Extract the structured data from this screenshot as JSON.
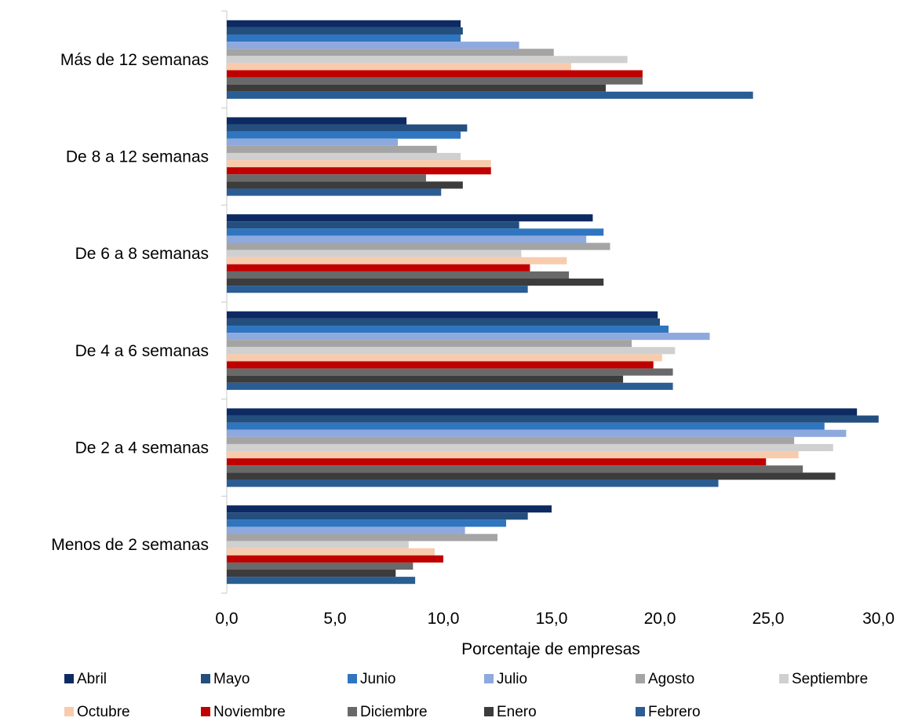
{
  "chart_data": {
    "type": "bar",
    "orientation": "horizontal",
    "categories": [
      "Más de 12 semanas",
      "De 8 a 12 semanas",
      "De 6 a 8 semanas",
      "De 4 a 6 semanas",
      "De 2 a 4 semanas",
      "Menos de 2 semanas"
    ],
    "series": [
      {
        "name": "Abril",
        "color": "#0e2a63",
        "values": [
          10.8,
          8.3,
          16.9,
          19.9,
          29.1,
          15.0
        ]
      },
      {
        "name": "Mayo",
        "color": "#234e7e",
        "values": [
          10.9,
          11.1,
          13.5,
          20.0,
          30.1,
          13.9
        ]
      },
      {
        "name": "Junio",
        "color": "#2f75c0",
        "values": [
          10.8,
          10.8,
          17.4,
          20.4,
          27.6,
          12.9
        ]
      },
      {
        "name": "Julio",
        "color": "#8ea9dd",
        "values": [
          13.5,
          7.9,
          16.6,
          22.3,
          28.6,
          11.0
        ]
      },
      {
        "name": "Agosto",
        "color": "#a4a4a4",
        "values": [
          15.1,
          9.7,
          17.7,
          18.7,
          26.2,
          12.5
        ]
      },
      {
        "name": "Septiembre",
        "color": "#d0d0d0",
        "values": [
          18.5,
          10.8,
          13.6,
          20.7,
          28.0,
          8.4
        ]
      },
      {
        "name": "Octubre",
        "color": "#f8cbad",
        "values": [
          15.9,
          12.2,
          15.7,
          20.1,
          26.4,
          9.6
        ]
      },
      {
        "name": "Noviembre",
        "color": "#c00000",
        "values": [
          19.2,
          12.2,
          14.0,
          19.7,
          24.9,
          10.0
        ]
      },
      {
        "name": "Diciembre",
        "color": "#696969",
        "values": [
          19.2,
          9.2,
          15.8,
          20.6,
          26.6,
          8.6
        ]
      },
      {
        "name": "Enero",
        "color": "#3c3c3c",
        "values": [
          17.5,
          10.9,
          17.4,
          18.3,
          28.1,
          7.8
        ]
      },
      {
        "name": "Febrero",
        "color": "#2a5d93",
        "values": [
          24.3,
          9.9,
          13.9,
          20.6,
          22.7,
          8.7
        ]
      }
    ],
    "xlabel": "Porcentaje de empresas",
    "xlim": [
      0,
      30
    ],
    "xticks": [
      "0,0",
      "5,0",
      "10,0",
      "15,0",
      "20,0",
      "25,0",
      "30,0"
    ],
    "grid": false,
    "legend_position": "bottom"
  }
}
